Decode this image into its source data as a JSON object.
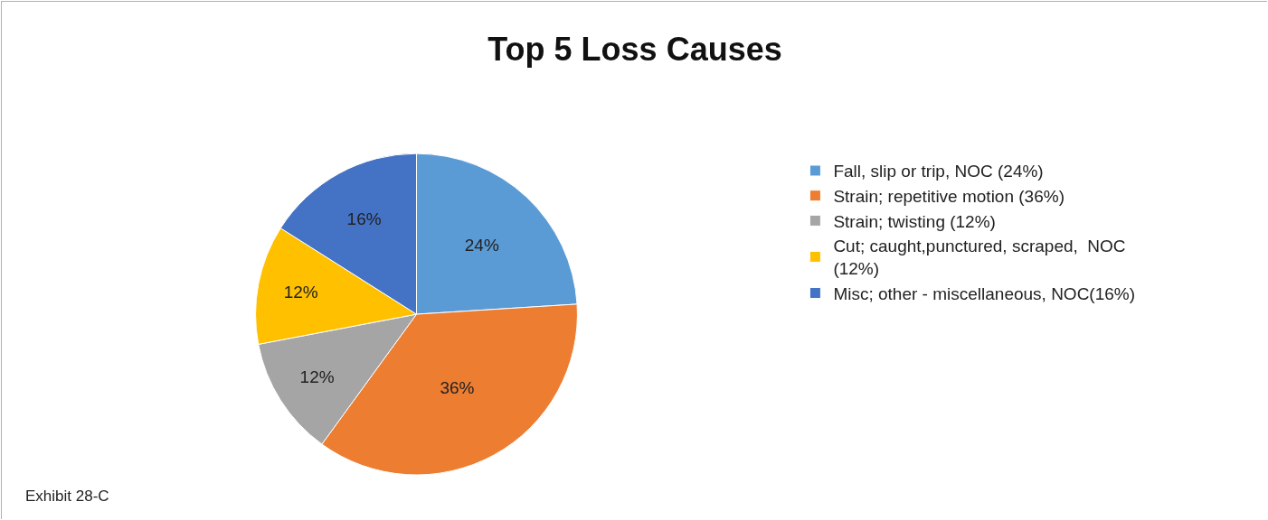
{
  "chart_data": {
    "type": "pie",
    "title": "Top 5 Loss Causes",
    "categories": [
      "Fall, slip or trip, NOC (24%)",
      "Strain; repetitive motion (36%)",
      "Strain; twisting (12%)",
      "Cut; caught,punctured, scraped,  NOC (12%)",
      "Misc; other - miscellaneous, NOC(16%)"
    ],
    "values": [
      24,
      36,
      12,
      12,
      16
    ],
    "value_labels": [
      "24%",
      "36%",
      "12%",
      "12%",
      "16%"
    ],
    "colors": [
      "#5b9bd5",
      "#ed7d31",
      "#a5a5a5",
      "#ffc000",
      "#4472c4"
    ],
    "legend": "right",
    "annotations": [
      "Exhibit 28-C"
    ]
  }
}
